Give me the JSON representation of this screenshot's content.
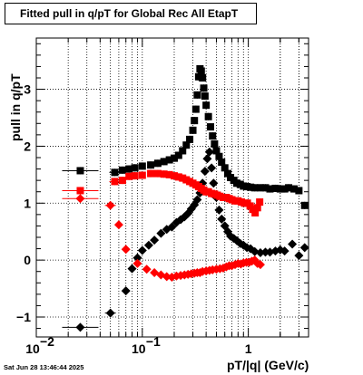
{
  "chart_data": {
    "type": "scatter",
    "title": "Fitted pull in q/pT for Global Rec All EtapT",
    "xlabel": "pT/|q| (GeV/c)",
    "ylabel": "pull in q/pT",
    "x_scale": "log",
    "xlim": [
      0.01,
      3.7
    ],
    "ylim": [
      -1.35,
      3.9
    ],
    "grid": true,
    "x_tick_labels": [
      {
        "value": 0.01,
        "label": "10"
      },
      {
        "value": 0.1,
        "label": "10"
      },
      {
        "value": 1,
        "label": "1"
      }
    ],
    "x_tick_exponents": [
      "−2",
      "−1"
    ],
    "y_ticks": [
      -1,
      0,
      1,
      2,
      3
    ],
    "series": [
      {
        "marker": "square",
        "color": "#000000",
        "points": [
          [
            0.026,
            1.57
          ],
          [
            0.055,
            1.54
          ],
          [
            0.065,
            1.58
          ],
          [
            0.075,
            1.6
          ],
          [
            0.085,
            1.62
          ],
          [
            0.1,
            1.65
          ],
          [
            0.12,
            1.67
          ],
          [
            0.14,
            1.7
          ],
          [
            0.16,
            1.73
          ],
          [
            0.18,
            1.76
          ],
          [
            0.2,
            1.79
          ],
          [
            0.22,
            1.84
          ],
          [
            0.24,
            1.92
          ],
          [
            0.26,
            2.02
          ],
          [
            0.28,
            2.12
          ],
          [
            0.3,
            2.28
          ],
          [
            0.31,
            2.45
          ],
          [
            0.32,
            2.65
          ],
          [
            0.33,
            2.9
          ],
          [
            0.34,
            3.22
          ],
          [
            0.35,
            3.36
          ],
          [
            0.36,
            3.32
          ],
          [
            0.37,
            3.2
          ],
          [
            0.38,
            3.02
          ],
          [
            0.39,
            2.88
          ],
          [
            0.4,
            2.72
          ],
          [
            0.42,
            2.52
          ],
          [
            0.44,
            2.34
          ],
          [
            0.46,
            2.18
          ],
          [
            0.48,
            2.04
          ],
          [
            0.5,
            1.92
          ],
          [
            0.53,
            1.82
          ],
          [
            0.56,
            1.72
          ],
          [
            0.6,
            1.62
          ],
          [
            0.64,
            1.52
          ],
          [
            0.68,
            1.45
          ],
          [
            0.73,
            1.4
          ],
          [
            0.78,
            1.35
          ],
          [
            0.84,
            1.33
          ],
          [
            0.9,
            1.3
          ],
          [
            0.97,
            1.29
          ],
          [
            1.05,
            1.28
          ],
          [
            1.15,
            1.27
          ],
          [
            1.3,
            1.27
          ],
          [
            1.45,
            1.27
          ],
          [
            1.6,
            1.25
          ],
          [
            1.8,
            1.26
          ],
          [
            2.0,
            1.25
          ],
          [
            2.2,
            1.25
          ],
          [
            2.4,
            1.27
          ],
          [
            2.7,
            1.25
          ],
          [
            3.0,
            1.22
          ],
          [
            3.4,
            0.96
          ]
        ]
      },
      {
        "marker": "diamond",
        "color": "#000000",
        "points": [
          [
            0.026,
            -1.18
          ],
          [
            0.05,
            -0.93
          ],
          [
            0.07,
            -0.54
          ],
          [
            0.08,
            -0.15
          ],
          [
            0.09,
            0.04
          ],
          [
            0.1,
            0.17
          ],
          [
            0.115,
            0.26
          ],
          [
            0.13,
            0.35
          ],
          [
            0.15,
            0.47
          ],
          [
            0.17,
            0.54
          ],
          [
            0.19,
            0.58
          ],
          [
            0.21,
            0.66
          ],
          [
            0.23,
            0.71
          ],
          [
            0.25,
            0.76
          ],
          [
            0.27,
            0.82
          ],
          [
            0.29,
            0.9
          ],
          [
            0.31,
            0.97
          ],
          [
            0.33,
            1.06
          ],
          [
            0.35,
            1.18
          ],
          [
            0.37,
            1.35
          ],
          [
            0.39,
            1.56
          ],
          [
            0.41,
            1.78
          ],
          [
            0.43,
            1.9
          ],
          [
            0.45,
            1.62
          ],
          [
            0.47,
            1.35
          ],
          [
            0.5,
            1.1
          ],
          [
            0.53,
            0.88
          ],
          [
            0.56,
            0.72
          ],
          [
            0.6,
            0.6
          ],
          [
            0.64,
            0.5
          ],
          [
            0.68,
            0.42
          ],
          [
            0.73,
            0.38
          ],
          [
            0.78,
            0.34
          ],
          [
            0.84,
            0.29
          ],
          [
            0.9,
            0.26
          ],
          [
            0.97,
            0.22
          ],
          [
            1.05,
            0.2
          ],
          [
            1.15,
            0.15
          ],
          [
            1.3,
            0.13
          ],
          [
            1.45,
            0.14
          ],
          [
            1.6,
            0.14
          ],
          [
            1.8,
            0.16
          ],
          [
            2.0,
            0.18
          ],
          [
            2.2,
            0.16
          ],
          [
            2.6,
            0.28
          ],
          [
            3.0,
            0.08
          ],
          [
            3.4,
            0.22
          ]
        ]
      },
      {
        "marker": "square",
        "color": "#ff0000",
        "points": [
          [
            0.026,
            1.22
          ],
          [
            0.055,
            1.38
          ],
          [
            0.065,
            1.4
          ],
          [
            0.075,
            1.47
          ],
          [
            0.085,
            1.48
          ],
          [
            0.1,
            1.49
          ],
          [
            0.12,
            1.52
          ],
          [
            0.14,
            1.52
          ],
          [
            0.16,
            1.51
          ],
          [
            0.18,
            1.5
          ],
          [
            0.2,
            1.48
          ],
          [
            0.22,
            1.46
          ],
          [
            0.24,
            1.44
          ],
          [
            0.26,
            1.41
          ],
          [
            0.28,
            1.38
          ],
          [
            0.3,
            1.35
          ],
          [
            0.32,
            1.32
          ],
          [
            0.34,
            1.29
          ],
          [
            0.36,
            1.26
          ],
          [
            0.38,
            1.23
          ],
          [
            0.4,
            1.2
          ],
          [
            0.42,
            1.2
          ],
          [
            0.45,
            1.17
          ],
          [
            0.48,
            1.16
          ],
          [
            0.51,
            1.14
          ],
          [
            0.54,
            1.12
          ],
          [
            0.58,
            1.1
          ],
          [
            0.62,
            1.1
          ],
          [
            0.66,
            1.08
          ],
          [
            0.7,
            1.06
          ],
          [
            0.75,
            1.04
          ],
          [
            0.8,
            1.04
          ],
          [
            0.86,
            1.02
          ],
          [
            0.92,
            1.0
          ],
          [
            0.98,
            1.0
          ],
          [
            1.04,
            0.95
          ],
          [
            1.1,
            0.89
          ],
          [
            1.16,
            0.83
          ],
          [
            1.22,
            0.92
          ],
          [
            1.28,
            1.02
          ]
        ]
      },
      {
        "marker": "diamond",
        "color": "#ff0000",
        "points": [
          [
            0.026,
            1.08
          ],
          [
            0.05,
            0.96
          ],
          [
            0.06,
            0.62
          ],
          [
            0.07,
            0.19
          ],
          [
            0.09,
            -0.06
          ],
          [
            0.11,
            -0.16
          ],
          [
            0.13,
            -0.22
          ],
          [
            0.15,
            -0.26
          ],
          [
            0.17,
            -0.29
          ],
          [
            0.19,
            -0.3
          ],
          [
            0.21,
            -0.28
          ],
          [
            0.23,
            -0.27
          ],
          [
            0.25,
            -0.26
          ],
          [
            0.27,
            -0.25
          ],
          [
            0.29,
            -0.24
          ],
          [
            0.31,
            -0.23
          ],
          [
            0.33,
            -0.22
          ],
          [
            0.35,
            -0.22
          ],
          [
            0.37,
            -0.2
          ],
          [
            0.4,
            -0.19
          ],
          [
            0.43,
            -0.18
          ],
          [
            0.46,
            -0.17
          ],
          [
            0.5,
            -0.16
          ],
          [
            0.54,
            -0.15
          ],
          [
            0.58,
            -0.14
          ],
          [
            0.62,
            -0.12
          ],
          [
            0.66,
            -0.1
          ],
          [
            0.7,
            -0.1
          ],
          [
            0.75,
            -0.08
          ],
          [
            0.8,
            -0.06
          ],
          [
            0.85,
            -0.07
          ],
          [
            0.9,
            -0.05
          ],
          [
            0.96,
            -0.04
          ],
          [
            1.02,
            -0.04
          ],
          [
            1.08,
            -0.02
          ],
          [
            1.15,
            0.0
          ],
          [
            1.22,
            -0.06
          ],
          [
            1.3,
            -0.08
          ]
        ]
      }
    ]
  },
  "footer": {
    "datestamp": "Sat Jun 28 13:46:44 2025"
  }
}
